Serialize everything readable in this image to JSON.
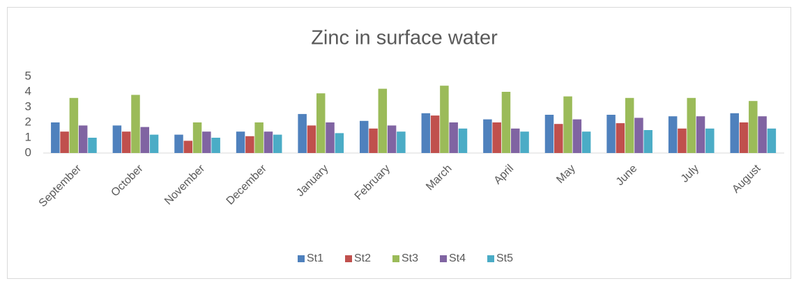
{
  "chart_data": {
    "type": "bar",
    "title": "Zinc in surface water",
    "categories": [
      "September",
      "October",
      "November",
      "December",
      "January",
      "February",
      "March",
      "April",
      "May",
      "June",
      "July",
      "August"
    ],
    "series": [
      {
        "name": "St1",
        "color": "#4f81bd",
        "values": [
          2.0,
          1.8,
          1.2,
          1.4,
          2.55,
          2.1,
          2.6,
          2.2,
          2.5,
          2.5,
          2.4,
          2.6
        ]
      },
      {
        "name": "St2",
        "color": "#c0504d",
        "values": [
          1.4,
          1.4,
          0.8,
          1.1,
          1.8,
          1.6,
          2.45,
          2.0,
          1.9,
          1.95,
          1.6,
          2.0
        ]
      },
      {
        "name": "St3",
        "color": "#9bbb59",
        "values": [
          3.6,
          3.8,
          2.0,
          2.0,
          3.9,
          4.2,
          4.4,
          4.0,
          3.7,
          3.6,
          3.6,
          3.4
        ]
      },
      {
        "name": "St4",
        "color": "#8064a2",
        "values": [
          1.8,
          1.7,
          1.4,
          1.4,
          2.0,
          1.8,
          2.0,
          1.6,
          2.2,
          2.3,
          2.4,
          2.4
        ]
      },
      {
        "name": "St5",
        "color": "#4bacc6",
        "values": [
          1.0,
          1.2,
          1.0,
          1.2,
          1.3,
          1.4,
          1.6,
          1.4,
          1.4,
          1.5,
          1.6,
          1.6
        ]
      }
    ],
    "ylim": [
      0,
      5
    ],
    "yticks": [
      0,
      1,
      2,
      3,
      4,
      5
    ],
    "grid": false,
    "legend": "bottom"
  }
}
